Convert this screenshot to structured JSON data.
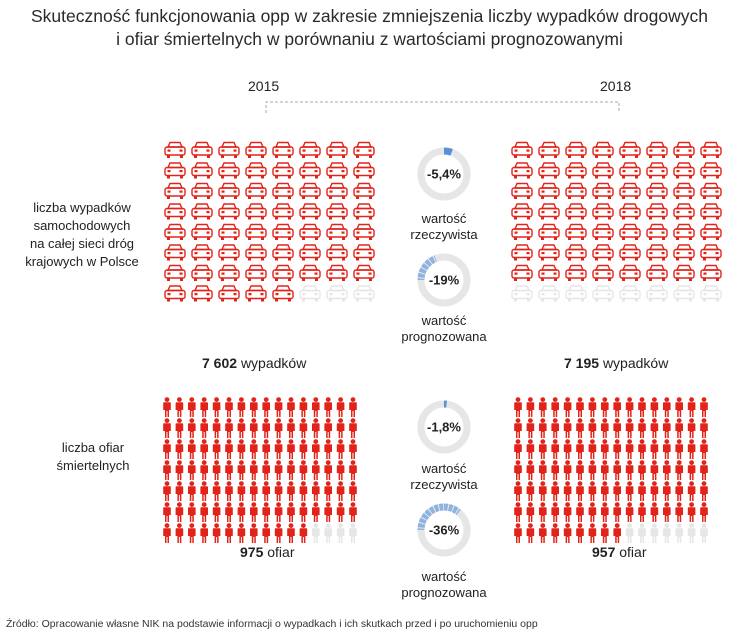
{
  "title_line1": "Skuteczność funkcjonowania opp w zakresie zmniejszenia liczby wypadków drogowych",
  "title_line2": "i ofiar śmiertelnych w porównaniu z wartościami prognozowanymi",
  "colors": {
    "accent": "#e2231a",
    "inactive": "#e6e6e6",
    "ring_bg": "#e6e6e6",
    "ring_real": "#5b8fd6",
    "ring_forecast": "#8fb3e0"
  },
  "source": "Źródło: Opracowanie własne NIK na podstawie informacji o wypadkach i ich skutkach przed i po uruchomieniu opp",
  "chart_data": {
    "type": "pictogram",
    "years": [
      "2015",
      "2018"
    ],
    "rows": [
      {
        "label_lines": [
          "liczba wypadków",
          "samochodowych",
          "na całej sieci dróg",
          "krajowych w Polsce"
        ],
        "icon": "car-icon",
        "grid": [
          8,
          8
        ],
        "values": [
          7602,
          7195
        ],
        "filled_icons": [
          61,
          56
        ],
        "count_numbers": [
          "7 602",
          "7 195"
        ],
        "count_unit": "wypadków",
        "rings": [
          {
            "label": "-5,4%",
            "value": 5.4,
            "caption_lines": [
              "wartość",
              "rzeczywista"
            ]
          },
          {
            "label": "-19%",
            "value": 19,
            "caption_lines": [
              "wartość",
              "prognozowana"
            ]
          }
        ]
      },
      {
        "label_lines": [
          "liczba ofiar",
          "śmiertelnych"
        ],
        "icon": "person-icon",
        "grid": [
          16,
          7
        ],
        "values": [
          975,
          957
        ],
        "filled_icons": [
          108,
          105
        ],
        "count_numbers": [
          "975",
          "957"
        ],
        "count_unit": "ofiar",
        "rings": [
          {
            "label": "-1,8%",
            "value": 1.8,
            "caption_lines": [
              "wartość",
              "rzeczywista"
            ]
          },
          {
            "label": "-36%",
            "value": 36,
            "caption_lines": [
              "wartość",
              "prognozowana"
            ]
          }
        ]
      }
    ]
  }
}
